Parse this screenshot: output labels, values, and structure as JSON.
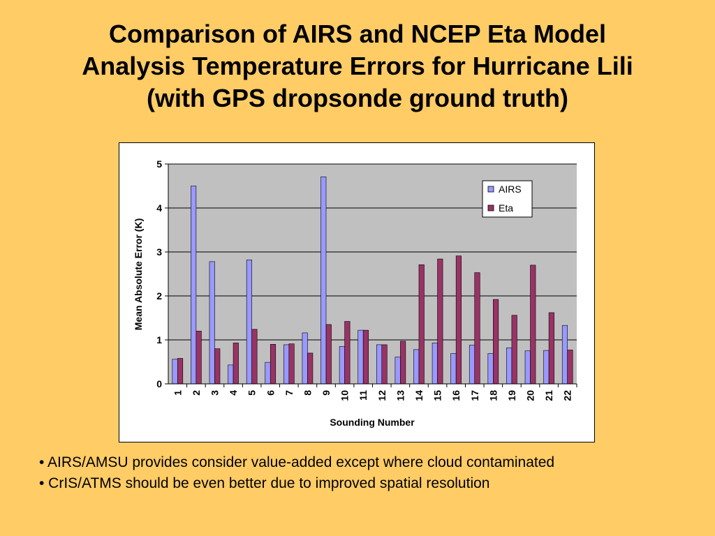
{
  "slide": {
    "title_lines": [
      "Comparison of AIRS and NCEP Eta Model",
      "Analysis Temperature Errors for Hurricane Lili",
      "(with GPS dropsonde ground truth)"
    ],
    "bullets": [
      "• AIRS/AMSU provides consider value-added except where cloud contaminated",
      "• CrIS/ATMS should be even better due to improved spatial resolution"
    ]
  },
  "chart_data": {
    "type": "bar",
    "title": "",
    "xlabel": "Sounding Number",
    "ylabel": "Mean Absolute Error (K)",
    "ylim": [
      0,
      5
    ],
    "yticks": [
      "0",
      "1",
      "2",
      "3",
      "4",
      "5"
    ],
    "grid": true,
    "legend_position": "top-right",
    "plot_background": "#C0C0C0",
    "categories": [
      "1",
      "2",
      "3",
      "4",
      "5",
      "6",
      "7",
      "8",
      "9",
      "10",
      "11",
      "12",
      "13",
      "14",
      "15",
      "16",
      "17",
      "18",
      "19",
      "20",
      "21",
      "22"
    ],
    "series": [
      {
        "name": "AIRS",
        "color": "#9999FF",
        "values": [
          0.56,
          4.5,
          2.78,
          0.43,
          2.82,
          0.49,
          0.89,
          1.16,
          4.71,
          0.85,
          1.22,
          0.89,
          0.61,
          0.78,
          0.93,
          0.69,
          0.88,
          0.69,
          0.82,
          0.75,
          0.76,
          1.33
        ]
      },
      {
        "name": "Eta",
        "color": "#993366",
        "values": [
          0.58,
          1.2,
          0.8,
          0.93,
          1.24,
          0.9,
          0.91,
          0.7,
          1.35,
          1.42,
          1.22,
          0.89,
          0.97,
          2.71,
          2.84,
          2.91,
          2.53,
          1.92,
          1.56,
          2.7,
          1.62,
          0.77
        ]
      }
    ]
  }
}
